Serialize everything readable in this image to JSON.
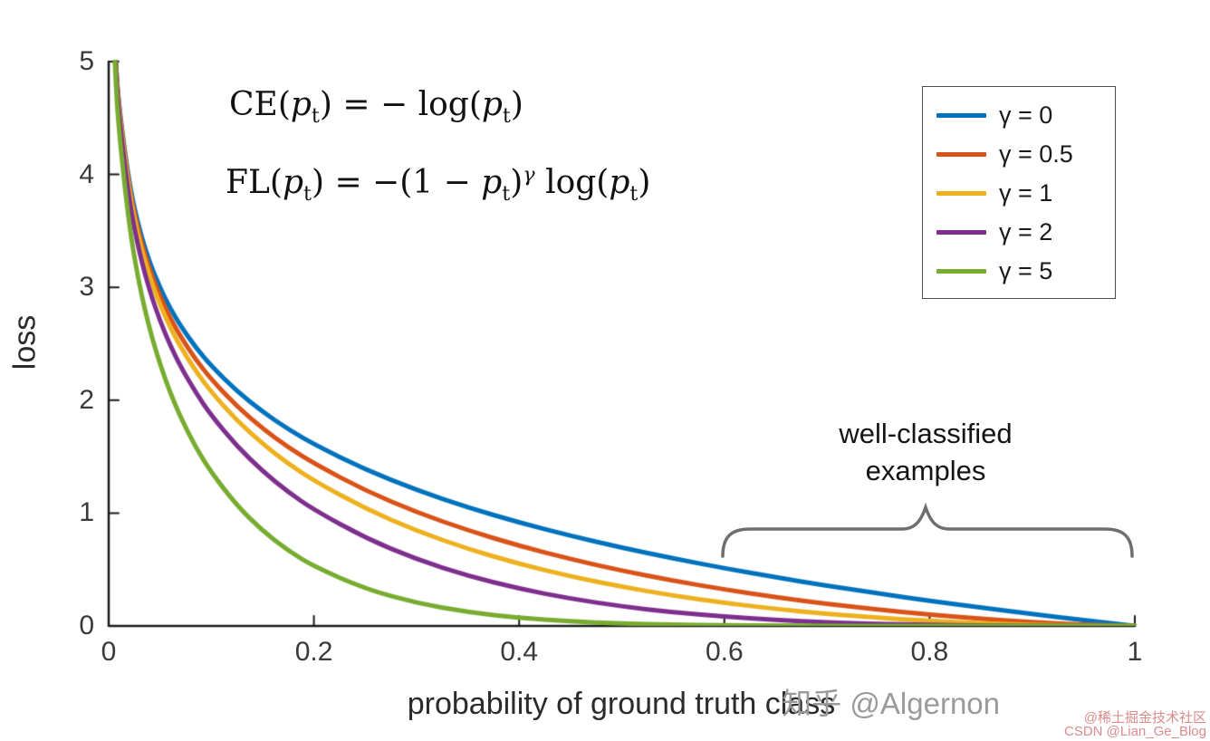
{
  "colors": {
    "axis": "#1a1a1a",
    "tick_label": "#3a3a3a",
    "brace": "#6e6e6e"
  },
  "chart_data": {
    "type": "line",
    "title": "",
    "xlabel": "probability of ground truth class",
    "ylabel": "loss",
    "xlim": [
      0,
      1
    ],
    "ylim": [
      0,
      5
    ],
    "grid": false,
    "legend_position": "top-right",
    "xticks": [
      0,
      0.2,
      0.4,
      0.6,
      0.8,
      1
    ],
    "xtick_labels": [
      "0",
      "0.2",
      "0.4",
      "0.6",
      "0.8",
      "1"
    ],
    "yticks": [
      0,
      1,
      2,
      3,
      4,
      5
    ],
    "ytick_labels": [
      "0",
      "1",
      "2",
      "3",
      "4",
      "5"
    ],
    "x": [
      0.004,
      0.0067,
      0.01,
      0.02,
      0.03,
      0.04,
      0.05,
      0.06,
      0.07,
      0.085,
      0.1,
      0.125,
      0.15,
      0.175,
      0.2,
      0.25,
      0.3,
      0.35,
      0.4,
      0.45,
      0.5,
      0.55,
      0.6,
      0.65,
      0.7,
      0.75,
      0.8,
      0.85,
      0.9,
      0.95,
      1
    ],
    "series": [
      {
        "label": "γ = 0",
        "gamma": 0,
        "color": "#0072BD",
        "values": [
          5.521,
          5.006,
          4.605,
          3.912,
          3.507,
          3.219,
          2.996,
          2.813,
          2.659,
          2.465,
          2.303,
          2.079,
          1.897,
          1.743,
          1.609,
          1.386,
          1.204,
          1.05,
          0.916,
          0.799,
          0.693,
          0.598,
          0.511,
          0.431,
          0.357,
          0.288,
          0.223,
          0.163,
          0.105,
          0.051,
          0
        ]
      },
      {
        "label": "γ = 0.5",
        "gamma": 0.5,
        "color": "#D95319",
        "values": [
          5.51,
          4.989,
          4.582,
          3.873,
          3.454,
          3.154,
          2.92,
          2.727,
          2.565,
          2.358,
          2.185,
          1.945,
          1.749,
          1.583,
          1.439,
          1.2,
          1.007,
          0.847,
          0.71,
          0.592,
          0.49,
          0.401,
          0.323,
          0.255,
          0.196,
          0.144,
          0.1,
          0.063,
          0.033,
          0.011,
          0
        ]
      },
      {
        "label": "γ = 1",
        "gamma": 1,
        "color": "#EDB120",
        "values": [
          5.499,
          4.972,
          4.559,
          3.834,
          3.402,
          3.09,
          2.846,
          2.644,
          2.473,
          2.256,
          2.072,
          1.819,
          1.613,
          1.438,
          1.287,
          1.04,
          0.843,
          0.682,
          0.55,
          0.439,
          0.347,
          0.269,
          0.204,
          0.151,
          0.107,
          0.072,
          0.045,
          0.024,
          0.01,
          0.003,
          0
        ]
      },
      {
        "label": "γ = 2",
        "gamma": 2,
        "color": "#7E2F8E",
        "values": [
          5.477,
          4.939,
          4.513,
          3.757,
          3.3,
          2.967,
          2.704,
          2.486,
          2.3,
          2.064,
          1.865,
          1.592,
          1.371,
          1.186,
          1.03,
          0.78,
          0.59,
          0.444,
          0.33,
          0.242,
          0.173,
          0.121,
          0.082,
          0.053,
          0.032,
          0.018,
          0.009,
          0.004,
          0.001,
          0,
          0
        ]
      },
      {
        "label": "γ = 5",
        "gamma": 5,
        "color": "#77AC30",
        "values": [
          5.412,
          4.841,
          4.379,
          3.536,
          3.012,
          2.625,
          2.318,
          2.065,
          1.85,
          1.58,
          1.36,
          1.066,
          0.842,
          0.666,
          0.527,
          0.329,
          0.202,
          0.122,
          0.071,
          0.04,
          0.022,
          0.011,
          0.005,
          0.002,
          0.001,
          0,
          0,
          0,
          0,
          0,
          0
        ]
      }
    ]
  },
  "formulas": {
    "ce": {
      "p1": "CE(",
      "p2": "p",
      "p3": "t",
      "p4": ") = − log(",
      "p5": "p",
      "p6": "t",
      "p7": ")"
    },
    "fl": {
      "q1": "FL(",
      "q2": "p",
      "q3": "t",
      "q4": ") = −(1 − ",
      "q5": "p",
      "q6": "t",
      "q7": ")",
      "q8": "γ",
      "q9": " log(",
      "q10": "p",
      "q11": "t",
      "q12": ")"
    }
  },
  "annotation": {
    "line1": "well-classified",
    "line2": "examples"
  },
  "watermarks": {
    "zhihu": "知乎 @Algernon",
    "juejin": "@稀土掘金技术社区",
    "csdn": "CSDN @Lian_Ge_Blog"
  }
}
